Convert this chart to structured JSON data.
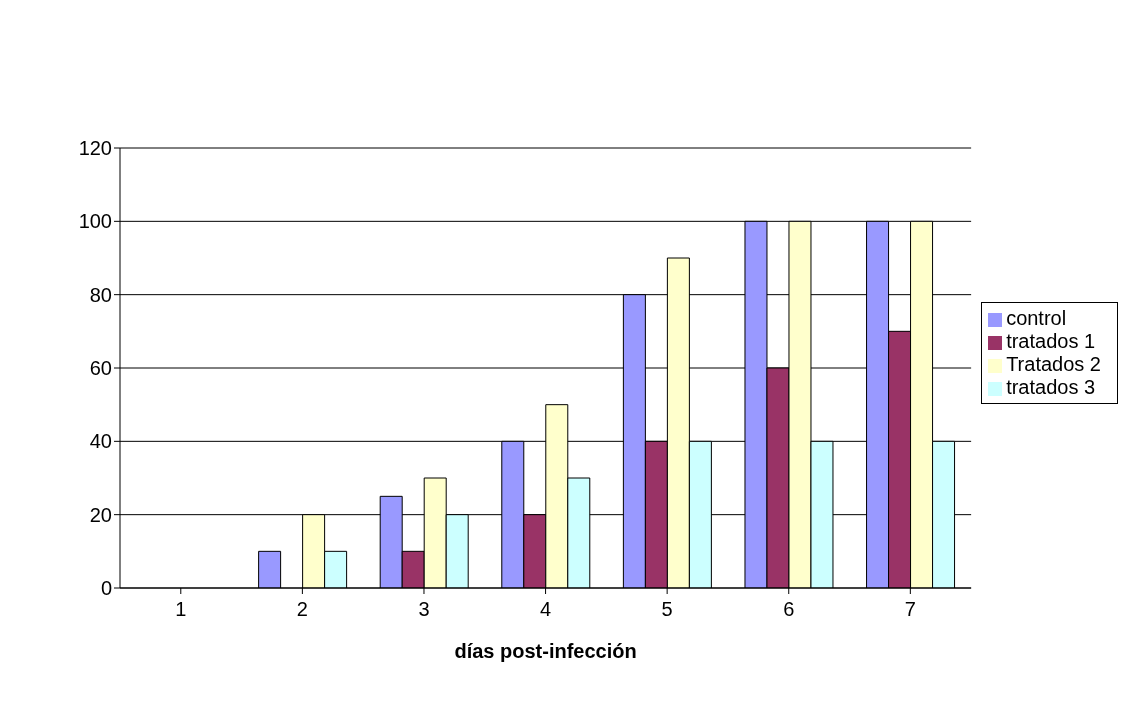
{
  "chart_data": {
    "type": "bar",
    "xlabel": "días post-infección",
    "categories": [
      "1",
      "2",
      "3",
      "4",
      "5",
      "6",
      "7"
    ],
    "series": [
      {
        "name": "control",
        "color": "#9999ff",
        "values": [
          0,
          10,
          25,
          40,
          80,
          100,
          100
        ]
      },
      {
        "name": "tratados 1",
        "color": "#993366",
        "values": [
          0,
          0,
          10,
          20,
          40,
          60,
          70
        ]
      },
      {
        "name": "Tratados 2",
        "color": "#ffffcc",
        "values": [
          0,
          20,
          30,
          50,
          90,
          100,
          100
        ]
      },
      {
        "name": "tratados 3",
        "color": "#ccffff",
        "values": [
          0,
          10,
          20,
          30,
          40,
          40,
          40
        ]
      }
    ],
    "ylim": [
      0,
      120
    ],
    "yticks": [
      0,
      20,
      40,
      60,
      80,
      100,
      120
    ],
    "grid": "y",
    "legend": "right"
  }
}
